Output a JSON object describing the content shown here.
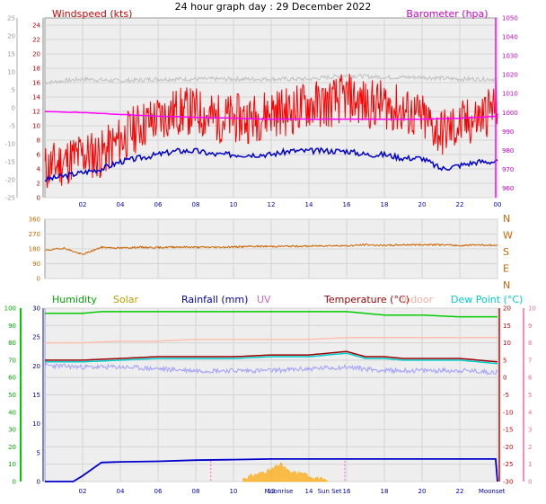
{
  "title": "24 hour graph day : 29 December 2022",
  "x_ticks": [
    "02",
    "04",
    "06",
    "08",
    "10",
    "12",
    "14",
    "16",
    "18",
    "20",
    "22",
    "00"
  ],
  "chart_data": [
    {
      "type": "line",
      "panel": "wind-baro",
      "title": "24 hour graph day : 29 December 2022",
      "legend": {
        "windspeed": "Windspeed (kts)",
        "barometer": "Barometer (hpa)"
      },
      "y_left_wind_ticks": [
        "24",
        "22",
        "20",
        "18",
        "16",
        "14",
        "12",
        "10",
        "8",
        "6",
        "4",
        "2",
        "0"
      ],
      "y_left_temp_ticks": [
        "25",
        "20",
        "15",
        "10",
        "5",
        "0",
        "-5",
        "-10",
        "-15",
        "-20",
        "-25"
      ],
      "y_right_baro_ticks": [
        "1050",
        "1040",
        "1030",
        "1020",
        "1010",
        "1000",
        "990",
        "980",
        "970",
        "960"
      ],
      "ylim_wind": [
        0,
        25
      ],
      "ylim_baro": [
        955,
        1050
      ],
      "series": [
        {
          "name": "Windspeed (kts)",
          "color": "#ff0000",
          "x": [
            0,
            1,
            2,
            3,
            4,
            5,
            6,
            7,
            8,
            9,
            10,
            11,
            12,
            13,
            14,
            15,
            16,
            17,
            18,
            19,
            20,
            21,
            22,
            23,
            24
          ],
          "values": [
            4,
            5,
            6,
            6,
            8,
            10,
            11,
            12,
            12,
            11,
            11,
            11,
            12,
            12,
            13,
            13,
            14,
            13,
            13,
            12,
            11,
            9,
            10,
            11,
            13
          ]
        },
        {
          "name": "Windspeed avg",
          "color": "#0000cc",
          "x": [
            0,
            1,
            2,
            3,
            4,
            5,
            6,
            7,
            8,
            9,
            10,
            11,
            12,
            13,
            14,
            15,
            16,
            17,
            18,
            19,
            20,
            21,
            22,
            23,
            24
          ],
          "values": [
            2.5,
            3,
            3.5,
            4,
            5,
            5.5,
            6,
            6.5,
            6.5,
            6,
            6,
            6,
            6,
            6.5,
            6.5,
            6.5,
            6.5,
            6,
            6,
            5.5,
            5.5,
            4,
            4.5,
            5,
            5
          ]
        },
        {
          "name": "Barometer (hpa)",
          "color": "#ff00ff",
          "x": [
            0,
            2,
            4,
            6,
            8,
            10,
            12,
            14,
            16,
            18,
            20,
            22,
            24
          ],
          "values": [
            1000.5,
            1000,
            999,
            998,
            997.5,
            997,
            996.5,
            996.5,
            996.5,
            996.5,
            996.5,
            997,
            998
          ]
        },
        {
          "name": "Chill",
          "color": "#c0c0c0",
          "x": [
            0,
            2,
            4,
            6,
            8,
            10,
            12,
            14,
            16,
            18,
            20,
            22,
            24
          ],
          "values": [
            7,
            8,
            7.5,
            8,
            8,
            8,
            8,
            8,
            9,
            8.5,
            8.5,
            8,
            8
          ]
        }
      ]
    },
    {
      "type": "line",
      "panel": "direction",
      "y_ticks": [
        "360",
        "270",
        "180",
        "90",
        "0"
      ],
      "compass": [
        "N",
        "W",
        "S",
        "E",
        "N"
      ],
      "ylim": [
        0,
        360
      ],
      "series": [
        {
          "name": "Wind direction",
          "color": "#cc6600",
          "x": [
            0,
            1,
            2,
            3,
            4,
            5,
            6,
            7,
            8,
            9,
            10,
            11,
            12,
            13,
            14,
            15,
            16,
            17,
            18,
            19,
            20,
            21,
            22,
            23,
            24
          ],
          "values": [
            170,
            185,
            145,
            190,
            185,
            190,
            188,
            192,
            190,
            190,
            192,
            195,
            195,
            196,
            196,
            200,
            198,
            205,
            200,
            205,
            205,
            205,
            200,
            205,
            200
          ]
        }
      ]
    },
    {
      "type": "line",
      "panel": "temp-hum-rain",
      "legend": {
        "humidity": "Humidity",
        "solar": "Solar",
        "rainfall": "Rainfall (mm)",
        "uv": "UV",
        "temperature": "Temperature (°C)",
        "indoor": "Indoor",
        "dewpoint": "Dew Point (°C)"
      },
      "y_hum_ticks": [
        "100",
        "90",
        "80",
        "70",
        "60",
        "50",
        "40",
        "30",
        "20",
        "10",
        "0"
      ],
      "y_rain_ticks": [
        "30",
        "25",
        "20",
        "15",
        "10",
        "5",
        "0"
      ],
      "y_temp_ticks": [
        "20",
        "15",
        "10",
        "5",
        "0",
        "-5",
        "-10",
        "-15",
        "-20",
        "-25",
        "-30"
      ],
      "y_uv_ticks": [
        "10",
        "9",
        "8",
        "7",
        "6",
        "5",
        "4",
        "3",
        "2",
        "1",
        "0"
      ],
      "ylim_temp": [
        -30,
        20
      ],
      "ylim_rain": [
        0,
        30
      ],
      "ylim_hum": [
        0,
        100
      ],
      "moon_sun_labels": [
        "Moonrise",
        "Sun Set",
        "Moonset"
      ],
      "series": [
        {
          "name": "Humidity",
          "color": "#00cc00",
          "x": [
            0,
            1,
            2,
            3,
            4,
            6,
            8,
            10,
            12,
            14,
            16,
            17,
            18,
            19,
            20,
            22,
            24
          ],
          "values": [
            97,
            97,
            97,
            98,
            98,
            98,
            98,
            98,
            98,
            98,
            98,
            97,
            96,
            96,
            96,
            95,
            95
          ]
        },
        {
          "name": "Indoor",
          "color": "#ffc0b0",
          "x": [
            0,
            2,
            4,
            6,
            8,
            10,
            12,
            14,
            16,
            18,
            20,
            22,
            24
          ],
          "values": [
            10,
            10,
            10.5,
            10.5,
            11,
            11,
            11,
            11,
            11.5,
            11.5,
            11.5,
            11.5,
            11.5
          ]
        },
        {
          "name": "Temperature (°C)",
          "color": "#990000",
          "x": [
            0,
            2,
            4,
            6,
            8,
            10,
            12,
            14,
            16,
            17,
            18,
            19,
            20,
            22,
            24
          ],
          "values": [
            5,
            5,
            5.5,
            6,
            6,
            6,
            6.5,
            6.5,
            7.5,
            6,
            6,
            5.5,
            5.5,
            5.5,
            4.5
          ]
        },
        {
          "name": "Dew Point (°C)",
          "color": "#00cccc",
          "x": [
            0,
            2,
            4,
            6,
            8,
            10,
            12,
            14,
            16,
            17,
            18,
            19,
            20,
            22,
            24
          ],
          "values": [
            4.5,
            4.5,
            5,
            5.5,
            5.5,
            5.5,
            6,
            6,
            7,
            5.5,
            5.5,
            5,
            5,
            5,
            4
          ]
        },
        {
          "name": "Chill",
          "color": "#a0a0ff",
          "x": [
            0,
            2,
            4,
            6,
            8,
            10,
            12,
            14,
            16,
            18,
            20,
            22,
            24
          ],
          "values": [
            3.5,
            3,
            3,
            2.5,
            2,
            2,
            2,
            2.5,
            3,
            2,
            2,
            2,
            1.5
          ]
        },
        {
          "name": "Rainfall (mm)",
          "color": "#0000cc",
          "x": [
            0,
            1,
            1.5,
            2,
            3,
            4,
            6,
            8,
            10,
            12,
            14,
            16,
            18,
            20,
            22,
            23.9,
            24
          ],
          "values": [
            0,
            0,
            0,
            1,
            3.3,
            3.4,
            3.5,
            3.7,
            3.8,
            3.9,
            3.9,
            3.9,
            3.9,
            3.9,
            3.9,
            3.9,
            0
          ]
        },
        {
          "name": "Solar",
          "color": "#ffa500",
          "x": [
            10.5,
            11,
            11.5,
            12,
            12.5,
            13,
            13.5,
            14,
            14.5,
            15
          ],
          "values": [
            0.5,
            1,
            1.5,
            2,
            3,
            1.5,
            1.5,
            1,
            0.5,
            0
          ]
        }
      ]
    }
  ]
}
